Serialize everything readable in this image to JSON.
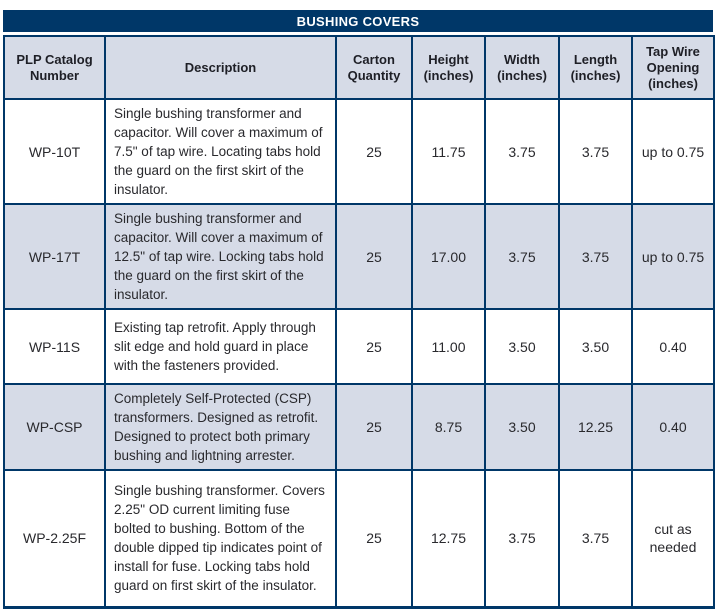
{
  "title": "BUSHING COVERS",
  "colors": {
    "navy": "#003768",
    "header_bg": "#d6dbe7",
    "text": "#29292d",
    "title_text": "#ffffff"
  },
  "table": {
    "columns": [
      "PLP Catalog Number",
      "Description",
      "Carton Quantity",
      "Height (inches)",
      "Width (inches)",
      "Length (inches)",
      "Tap Wire Opening (inches)"
    ],
    "rows": [
      {
        "catalog_number": "WP-10T",
        "description": "Single bushing transformer and capacitor. Will cover a maximum of 7.5\" of tap wire. Locating tabs hold the guard on the first skirt of the insulator.",
        "carton_quantity": "25",
        "height": "11.75",
        "width": "3.75",
        "length": "3.75",
        "tap_wire_opening": "up to 0.75"
      },
      {
        "catalog_number": "WP-17T",
        "description": "Single bushing transformer and capacitor. Will cover a maximum of 12.5\" of tap wire. Locking tabs hold the guard on the first skirt of the insulator.",
        "carton_quantity": "25",
        "height": "17.00",
        "width": "3.75",
        "length": "3.75",
        "tap_wire_opening": "up to 0.75"
      },
      {
        "catalog_number": "WP-11S",
        "description": "Existing tap retrofit. Apply through slit edge and hold guard in place with the fasteners provided.",
        "carton_quantity": "25",
        "height": "11.00",
        "width": "3.50",
        "length": "3.50",
        "tap_wire_opening": "0.40"
      },
      {
        "catalog_number": "WP-CSP",
        "description": "Completely Self-Protected (CSP) transformers. Designed as retrofit. Designed to protect both primary bushing and lightning arrester.",
        "carton_quantity": "25",
        "height": "8.75",
        "width": "3.50",
        "length": "12.25",
        "tap_wire_opening": "0.40"
      },
      {
        "catalog_number": "WP-2.25F",
        "description": "Single bushing transformer. Covers 2.25\" OD current limiting fuse bolted to bushing. Bottom of the double dipped tip indicates point of install for fuse. Locking tabs hold guard on first skirt of the insulator.",
        "carton_quantity": "25",
        "height": "12.75",
        "width": "3.75",
        "length": "3.75",
        "tap_wire_opening": "cut as needed"
      }
    ]
  }
}
